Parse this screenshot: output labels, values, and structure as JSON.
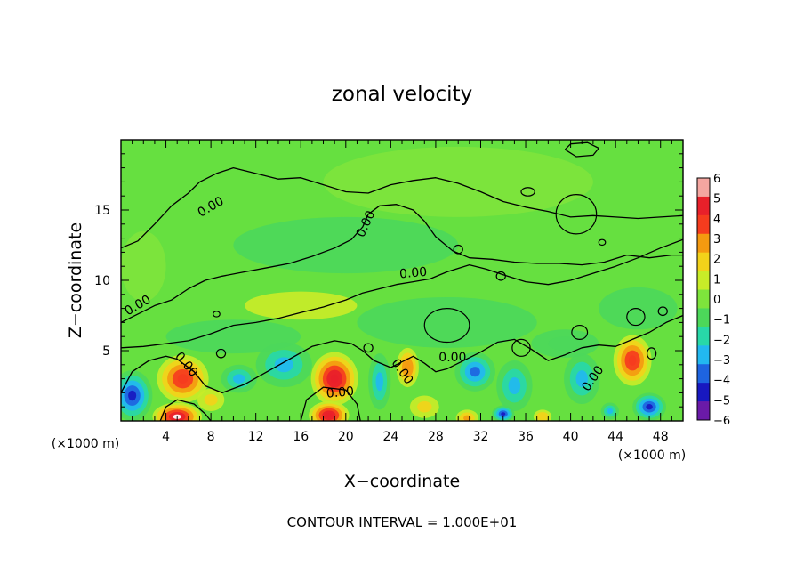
{
  "chart_data": {
    "type": "heatmap",
    "title": "zonal velocity",
    "xlabel": "X−coordinate",
    "ylabel": "Z−coordinate",
    "x_unit_left": "(×1000 m)",
    "x_unit_right": "(×1000 m)",
    "footer": "CONTOUR INTERVAL = 1.000E+01",
    "xlim": [
      0,
      50
    ],
    "ylim": [
      0,
      20
    ],
    "x_ticks": [
      4,
      8,
      12,
      16,
      20,
      24,
      28,
      32,
      36,
      40,
      44,
      48
    ],
    "y_ticks": [
      5,
      10,
      15
    ],
    "colorbar": {
      "labels": [
        "6",
        "5",
        "4",
        "3",
        "2",
        "1",
        "0",
        "−1",
        "−2",
        "−3",
        "−4",
        "−5",
        "−6"
      ],
      "colors": [
        "#f4a6a0",
        "#e8202a",
        "#f53c1e",
        "#f49a10",
        "#f2d21a",
        "#c8ec28",
        "#7ee43c",
        "#4cd85a",
        "#28d8a8",
        "#22b8f0",
        "#1e64e0",
        "#1818c0",
        "#6a1aa8"
      ]
    },
    "contour_labels": [
      {
        "text": "0.00",
        "x": 8.0,
        "z": 15.2,
        "rot": -30
      },
      {
        "text": "0.00",
        "x": 21.8,
        "z": 14.0,
        "rot": -65
      },
      {
        "text": "0.00",
        "x": 26.0,
        "z": 10.5,
        "rot": -5
      },
      {
        "text": "0.00",
        "x": 1.5,
        "z": 8.2,
        "rot": -30
      },
      {
        "text": "0.00",
        "x": 5.8,
        "z": 4.0,
        "rot": 50
      },
      {
        "text": "0.00",
        "x": 19.5,
        "z": 2.0,
        "rot": -5
      },
      {
        "text": "0.00",
        "x": 25.0,
        "z": 3.5,
        "rot": 55
      },
      {
        "text": "0.00",
        "x": 29.5,
        "z": 4.5,
        "rot": 0
      },
      {
        "text": "0.00",
        "x": 42.0,
        "z": 3.0,
        "rot": -55
      }
    ],
    "blobs": [
      {
        "x": 5.5,
        "z": 3.0,
        "rx": 2.3,
        "rz": 1.7,
        "v": 4.5
      },
      {
        "x": 19.0,
        "z": 3.0,
        "rx": 2.1,
        "rz": 1.9,
        "v": 5.5
      },
      {
        "x": 25.5,
        "z": 3.8,
        "rx": 1.0,
        "rz": 1.4,
        "v": 3.5
      },
      {
        "x": 45.5,
        "z": 4.3,
        "rx": 1.7,
        "rz": 1.8,
        "v": 4.5
      },
      {
        "x": 5.0,
        "z": 0.3,
        "rx": 2.2,
        "rz": 1.0,
        "v": 6.0
      },
      {
        "x": 18.5,
        "z": 0.4,
        "rx": 1.8,
        "rz": 1.0,
        "v": 5.5
      },
      {
        "x": 30.8,
        "z": 0.2,
        "rx": 1.0,
        "rz": 0.6,
        "v": 3.0
      },
      {
        "x": 37.5,
        "z": 0.3,
        "rx": 0.8,
        "rz": 0.5,
        "v": 2.5
      },
      {
        "x": 1.0,
        "z": 1.8,
        "rx": 1.8,
        "rz": 1.8,
        "v": -4.5
      },
      {
        "x": 14.5,
        "z": 4.0,
        "rx": 2.5,
        "rz": 1.6,
        "v": -3.0
      },
      {
        "x": 10.5,
        "z": 3.0,
        "rx": 1.6,
        "rz": 1.0,
        "v": -2.8
      },
      {
        "x": 23.0,
        "z": 2.8,
        "rx": 1.0,
        "rz": 2.0,
        "v": -3.0
      },
      {
        "x": 31.5,
        "z": 3.5,
        "rx": 1.8,
        "rz": 1.4,
        "v": -3.5
      },
      {
        "x": 35.0,
        "z": 2.5,
        "rx": 1.6,
        "rz": 1.8,
        "v": -3.0
      },
      {
        "x": 41.0,
        "z": 3.0,
        "rx": 1.6,
        "rz": 1.8,
        "v": -2.5
      },
      {
        "x": 47.0,
        "z": 1.0,
        "rx": 1.5,
        "rz": 1.0,
        "v": -4.5
      },
      {
        "x": 34.0,
        "z": 0.5,
        "rx": 1.0,
        "rz": 0.6,
        "v": -4.5
      },
      {
        "x": 43.5,
        "z": 0.7,
        "rx": 0.8,
        "rz": 0.6,
        "v": -3.0
      },
      {
        "x": 8.0,
        "z": 1.5,
        "rx": 1.2,
        "rz": 0.8,
        "v": 2.0
      },
      {
        "x": 27.0,
        "z": 1.0,
        "rx": 1.3,
        "rz": 0.8,
        "v": 1.8
      },
      {
        "x": 39.5,
        "z": 5.5,
        "rx": 3.0,
        "rz": 1.0,
        "v": -1.4
      },
      {
        "x": 29.0,
        "z": 7.0,
        "rx": 8.0,
        "rz": 1.8,
        "v": -0.9
      },
      {
        "x": 10.0,
        "z": 6.0,
        "rx": 6.0,
        "rz": 1.2,
        "v": -0.8
      },
      {
        "x": 20.0,
        "z": 12.5,
        "rx": 10.0,
        "rz": 2.0,
        "v": -0.4
      },
      {
        "x": 30.0,
        "z": 17.0,
        "rx": 12.0,
        "rz": 2.5,
        "v": 0.2
      },
      {
        "x": 2.0,
        "z": 11.0,
        "rx": 2.0,
        "rz": 2.5,
        "v": 0.5
      },
      {
        "x": 16.0,
        "z": 8.2,
        "rx": 5.0,
        "rz": 1.0,
        "v": 0.8
      },
      {
        "x": 46.0,
        "z": 8.0,
        "rx": 3.5,
        "rz": 1.5,
        "v": -0.6
      }
    ],
    "contours": [
      [
        [
          0.0,
          12.3
        ],
        [
          1.5,
          12.8
        ],
        [
          3.0,
          14.0
        ],
        [
          4.5,
          15.3
        ],
        [
          6.0,
          16.2
        ],
        [
          7.0,
          17.0
        ],
        [
          8.5,
          17.6
        ],
        [
          10.0,
          18.0
        ],
        [
          12.0,
          17.6
        ],
        [
          14.0,
          17.2
        ],
        [
          16.0,
          17.3
        ],
        [
          18.0,
          16.8
        ],
        [
          20.0,
          16.3
        ],
        [
          22.0,
          16.2
        ],
        [
          24.0,
          16.8
        ],
        [
          26.0,
          17.1
        ],
        [
          28.0,
          17.3
        ],
        [
          30.0,
          16.9
        ],
        [
          32.0,
          16.3
        ],
        [
          34.0,
          15.6
        ],
        [
          36.0,
          15.2
        ],
        [
          38.0,
          14.9
        ],
        [
          40.0,
          14.5
        ],
        [
          42.0,
          14.6
        ],
        [
          44.0,
          14.5
        ],
        [
          46.0,
          14.4
        ],
        [
          48.0,
          14.5
        ],
        [
          50.0,
          14.6
        ]
      ],
      [
        [
          0.0,
          7.0
        ],
        [
          1.5,
          7.6
        ],
        [
          3.0,
          8.2
        ],
        [
          4.5,
          8.6
        ],
        [
          6.0,
          9.4
        ],
        [
          7.5,
          10.0
        ],
        [
          9.0,
          10.3
        ],
        [
          11.0,
          10.6
        ],
        [
          13.0,
          10.9
        ],
        [
          15.0,
          11.2
        ],
        [
          17.0,
          11.7
        ],
        [
          19.0,
          12.3
        ],
        [
          20.5,
          12.9
        ],
        [
          21.5,
          13.8
        ],
        [
          22.0,
          14.7
        ],
        [
          23.0,
          15.3
        ],
        [
          24.5,
          15.4
        ],
        [
          26.0,
          15.0
        ],
        [
          27.0,
          14.2
        ],
        [
          28.0,
          13.1
        ],
        [
          29.5,
          12.1
        ],
        [
          31.0,
          11.6
        ],
        [
          33.0,
          11.5
        ],
        [
          35.0,
          11.3
        ],
        [
          37.0,
          11.2
        ],
        [
          39.0,
          11.2
        ],
        [
          41.0,
          11.1
        ],
        [
          43.0,
          11.3
        ],
        [
          45.0,
          11.8
        ],
        [
          47.0,
          11.6
        ],
        [
          49.0,
          11.8
        ],
        [
          50.0,
          11.8
        ]
      ],
      [
        [
          0.0,
          5.2
        ],
        [
          2.0,
          5.3
        ],
        [
          4.0,
          5.5
        ],
        [
          6.0,
          5.7
        ],
        [
          8.0,
          6.2
        ],
        [
          10.0,
          6.8
        ],
        [
          12.0,
          7.0
        ],
        [
          14.0,
          7.3
        ],
        [
          16.0,
          7.7
        ],
        [
          18.0,
          8.1
        ],
        [
          20.0,
          8.6
        ],
        [
          21.5,
          9.1
        ],
        [
          23.0,
          9.4
        ],
        [
          24.5,
          9.7
        ],
        [
          26.0,
          9.9
        ],
        [
          27.5,
          10.1
        ],
        [
          29.0,
          10.6
        ],
        [
          31.0,
          11.1
        ],
        [
          32.5,
          10.8
        ],
        [
          34.0,
          10.4
        ],
        [
          36.0,
          9.9
        ],
        [
          38.0,
          9.7
        ],
        [
          40.0,
          10.0
        ],
        [
          42.0,
          10.5
        ],
        [
          44.0,
          11.0
        ],
        [
          46.0,
          11.6
        ],
        [
          48.0,
          12.3
        ],
        [
          50.0,
          12.9
        ]
      ],
      [
        [
          0.0,
          2.0
        ],
        [
          1.0,
          3.5
        ],
        [
          2.5,
          4.3
        ],
        [
          4.0,
          4.6
        ],
        [
          5.0,
          4.4
        ],
        [
          6.5,
          3.5
        ],
        [
          7.5,
          2.5
        ],
        [
          9.0,
          2.0
        ],
        [
          11.0,
          2.6
        ],
        [
          13.0,
          3.5
        ],
        [
          15.0,
          4.4
        ],
        [
          17.0,
          5.3
        ],
        [
          19.0,
          5.7
        ],
        [
          20.5,
          5.5
        ],
        [
          21.5,
          5.0
        ],
        [
          22.5,
          4.3
        ],
        [
          24.0,
          3.8
        ],
        [
          25.0,
          4.2
        ],
        [
          26.0,
          4.6
        ],
        [
          27.0,
          4.1
        ],
        [
          28.0,
          3.5
        ],
        [
          29.0,
          3.7
        ],
        [
          30.5,
          4.3
        ],
        [
          32.0,
          4.9
        ],
        [
          33.5,
          5.6
        ],
        [
          35.0,
          5.8
        ],
        [
          36.5,
          5.1
        ],
        [
          38.0,
          4.3
        ],
        [
          39.5,
          4.7
        ],
        [
          41.0,
          5.2
        ],
        [
          42.5,
          5.4
        ],
        [
          44.0,
          5.3
        ],
        [
          45.5,
          5.8
        ],
        [
          47.0,
          6.3
        ],
        [
          48.5,
          7.0
        ],
        [
          50.0,
          7.5
        ]
      ],
      [
        [
          3.5,
          0.0
        ],
        [
          4.0,
          1.0
        ],
        [
          5.0,
          1.5
        ],
        [
          6.5,
          1.2
        ],
        [
          7.5,
          0.5
        ],
        [
          8.0,
          0.0
        ]
      ],
      [
        [
          16.0,
          0.0
        ],
        [
          16.5,
          1.5
        ],
        [
          18.0,
          2.4
        ],
        [
          20.0,
          2.2
        ],
        [
          21.0,
          1.2
        ],
        [
          21.3,
          0.0
        ]
      ],
      [
        [
          39.5,
          19.3
        ],
        [
          40.5,
          18.8
        ],
        [
          42.0,
          18.9
        ],
        [
          42.5,
          19.4
        ],
        [
          41.5,
          19.8
        ],
        [
          40.0,
          19.7
        ],
        [
          39.5,
          19.3
        ]
      ]
    ],
    "loops": [
      {
        "x": 40.5,
        "z": 14.7,
        "rx": 1.8,
        "rz": 1.4
      },
      {
        "x": 36.2,
        "z": 16.3,
        "rx": 0.6,
        "rz": 0.3
      },
      {
        "x": 30.0,
        "z": 12.2,
        "rx": 0.4,
        "rz": 0.3
      },
      {
        "x": 42.8,
        "z": 12.7,
        "rx": 0.3,
        "rz": 0.2
      },
      {
        "x": 33.8,
        "z": 10.3,
        "rx": 0.4,
        "rz": 0.3
      },
      {
        "x": 29.0,
        "z": 6.8,
        "rx": 2.0,
        "rz": 1.2
      },
      {
        "x": 35.6,
        "z": 5.2,
        "rx": 0.8,
        "rz": 0.6
      },
      {
        "x": 40.8,
        "z": 6.3,
        "rx": 0.7,
        "rz": 0.5
      },
      {
        "x": 45.8,
        "z": 7.4,
        "rx": 0.8,
        "rz": 0.6
      },
      {
        "x": 48.2,
        "z": 7.8,
        "rx": 0.4,
        "rz": 0.3
      },
      {
        "x": 47.2,
        "z": 4.8,
        "rx": 0.4,
        "rz": 0.4
      },
      {
        "x": 8.9,
        "z": 4.8,
        "rx": 0.4,
        "rz": 0.3
      },
      {
        "x": 8.5,
        "z": 7.6,
        "rx": 0.3,
        "rz": 0.2
      },
      {
        "x": 22.0,
        "z": 5.2,
        "rx": 0.4,
        "rz": 0.3
      }
    ]
  }
}
